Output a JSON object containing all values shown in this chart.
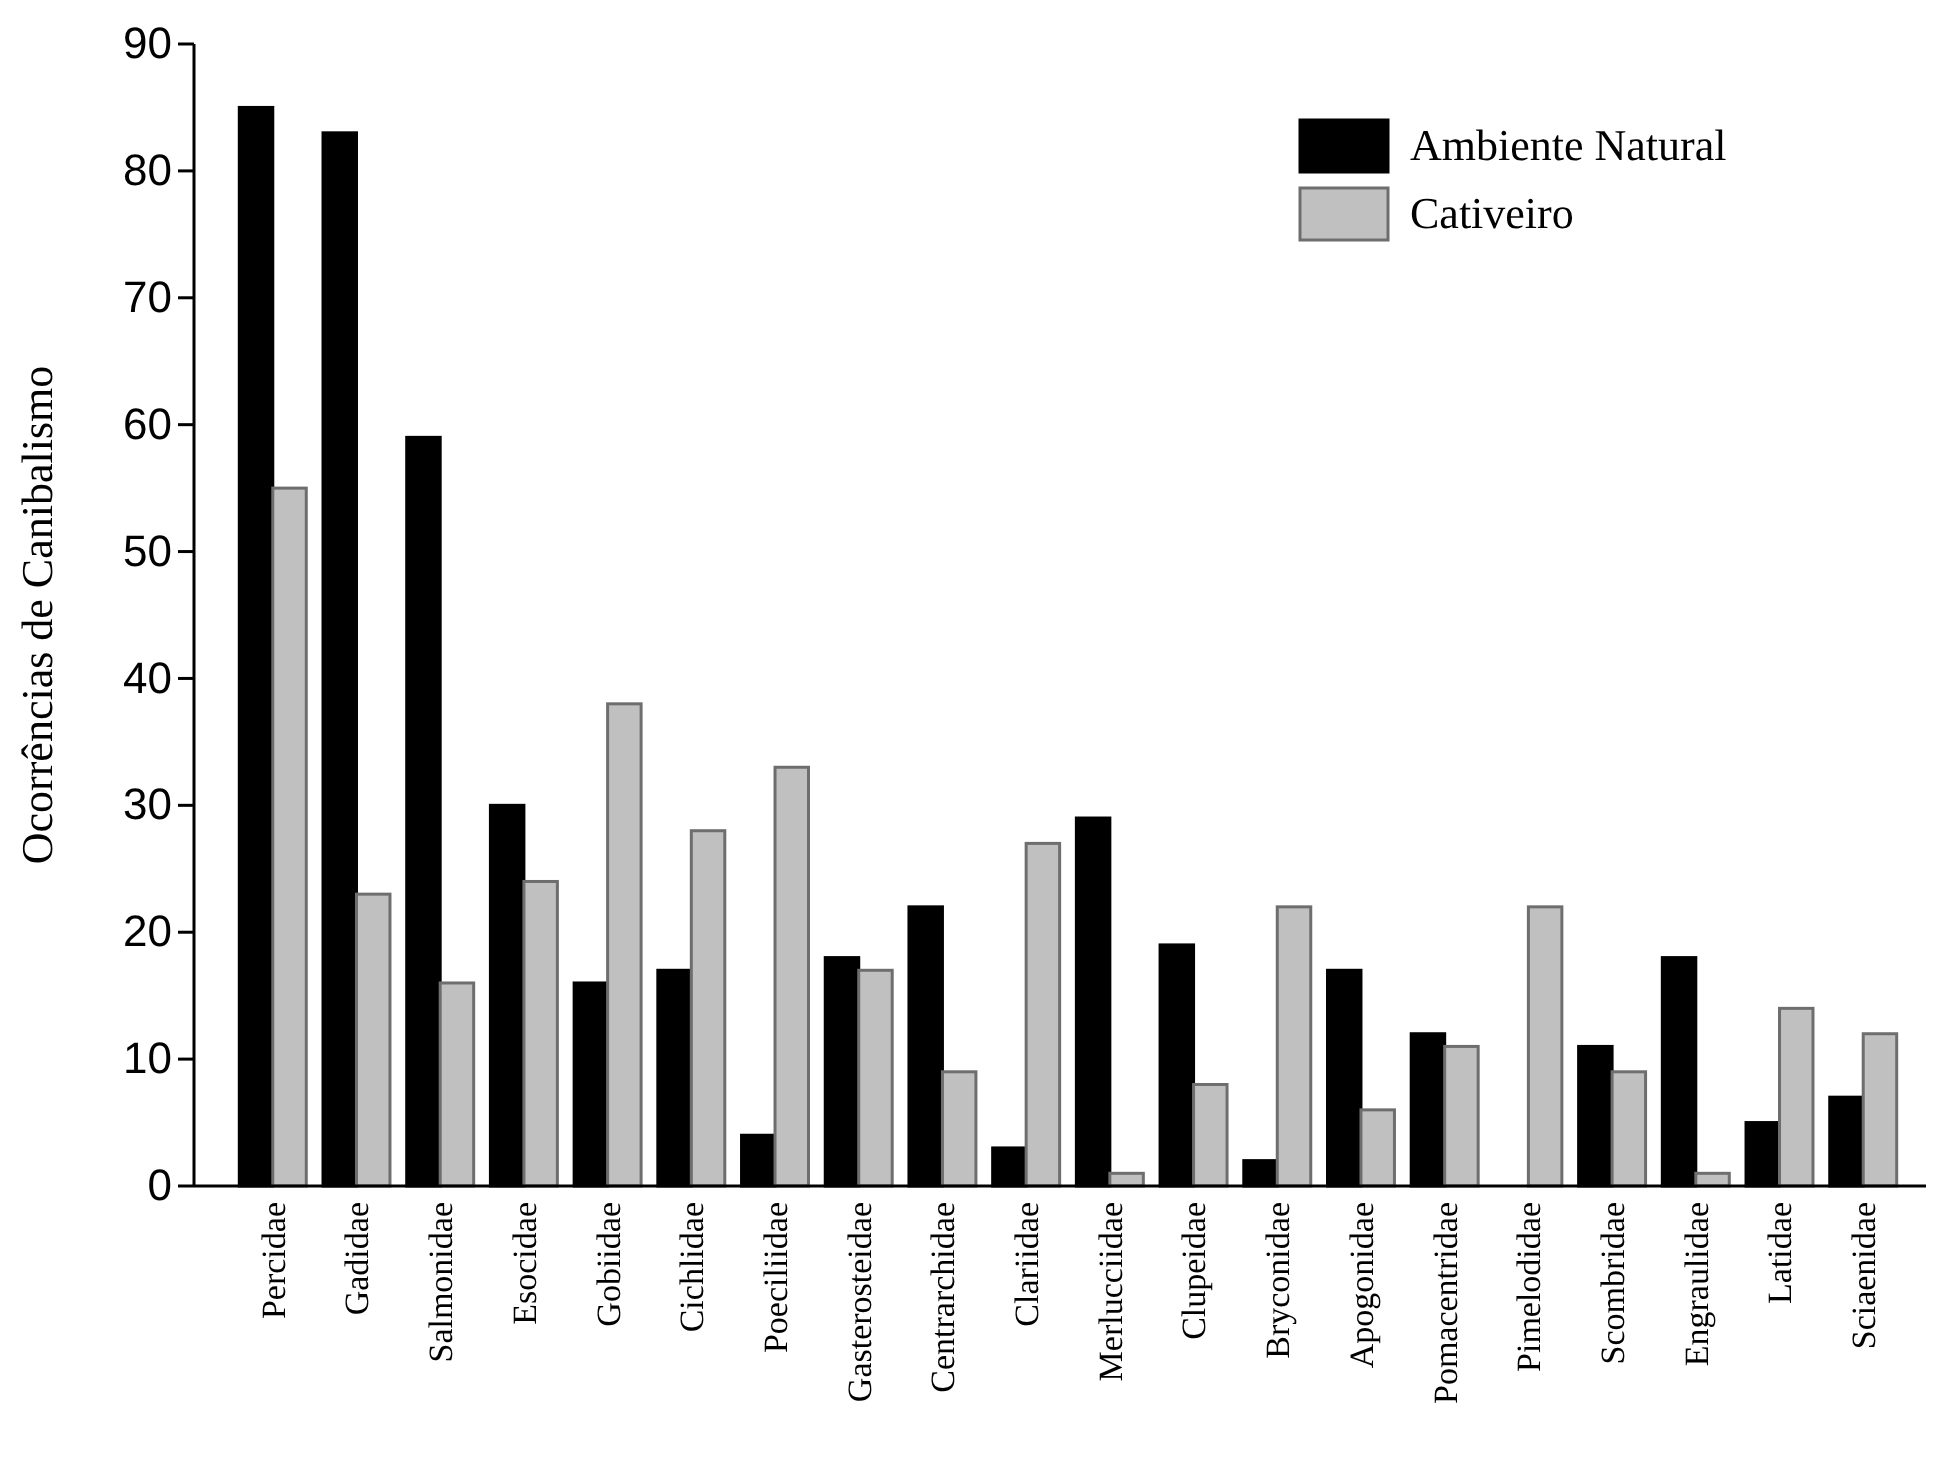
{
  "chart_data": {
    "type": "bar",
    "ylabel": "Ocorrências de Canibalismo",
    "categories": [
      "Percidae",
      "Gadidae",
      "Salmonidae",
      "Esocidae",
      "Gobiidae",
      "Cichlidae",
      "Poeciliidae",
      "Gasterosteidae",
      "Centrarchidae",
      "Clariidae",
      "Merlucciidae",
      "Clupeidae",
      "Bryconidae",
      "Apogonidae",
      "Pomacentridae",
      "Pimelodidae",
      "Scombridae",
      "Engraulidae",
      "Latidae",
      "Sciaenidae"
    ],
    "series": [
      {
        "name": "Ambiente Natural",
        "color": "#000000",
        "values": [
          85,
          83,
          59,
          30,
          16,
          17,
          4,
          18,
          22,
          3,
          29,
          19,
          2,
          17,
          12,
          0,
          11,
          18,
          5,
          7
        ]
      },
      {
        "name": "Cativeiro",
        "color": "#c0c0c0",
        "values": [
          55,
          23,
          16,
          24,
          38,
          28,
          33,
          17,
          9,
          27,
          1,
          8,
          22,
          6,
          11,
          22,
          9,
          1,
          14,
          12
        ]
      }
    ],
    "ylim": [
      0,
      90
    ],
    "yticks": [
      0,
      10,
      20,
      30,
      40,
      50,
      60,
      70,
      80,
      90
    ],
    "grid": false,
    "legend": "top right"
  }
}
